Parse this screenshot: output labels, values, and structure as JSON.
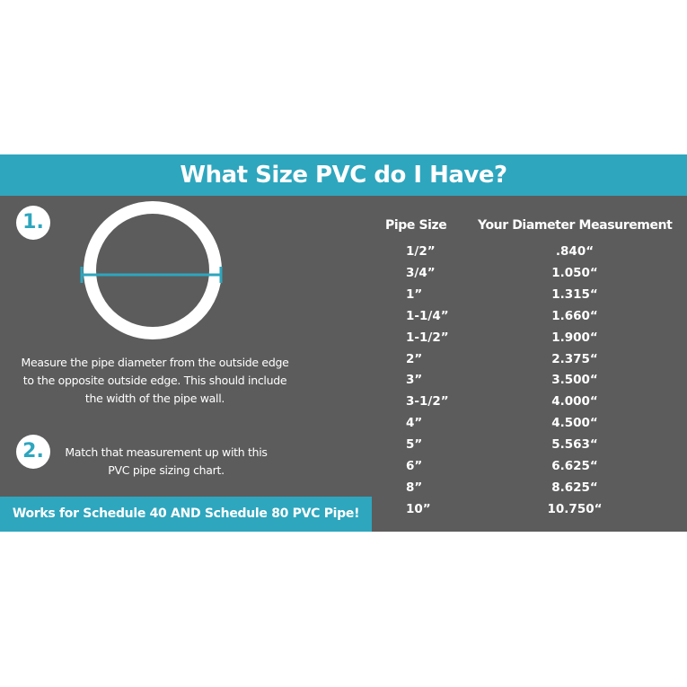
{
  "title": "What Size PVC do I Have?",
  "steps": [
    {
      "number": "1.",
      "text": "Measure the pipe diameter from the outside edge to the opposite outside edge. This should include the width of the pipe wall."
    },
    {
      "number": "2.",
      "text": "Match that measurement up with this PVC pipe sizing chart."
    }
  ],
  "footer": "Works for Schedule 40 AND Schedule 80 PVC Pipe!",
  "table": {
    "headers": [
      "Pipe Size",
      "Your Diameter Measurement"
    ],
    "rows": [
      [
        "1/2”",
        ".840“"
      ],
      [
        "3/4”",
        "1.050“"
      ],
      [
        "1”",
        "1.315“"
      ],
      [
        "1-1/4”",
        "1.660“"
      ],
      [
        "1-1/2”",
        "1.900“"
      ],
      [
        "2”",
        "2.375“"
      ],
      [
        "3”",
        "3.500“"
      ],
      [
        "3-1/2”",
        "4.000“"
      ],
      [
        "4”",
        "4.500“"
      ],
      [
        "5”",
        "5.563“"
      ],
      [
        "6”",
        "6.625“"
      ],
      [
        "8”",
        "8.625“"
      ],
      [
        "10”",
        "10.750“"
      ]
    ]
  },
  "colors": {
    "accent": "#2ea6be",
    "panel": "#5c5c5c",
    "text": "#ffffff"
  }
}
